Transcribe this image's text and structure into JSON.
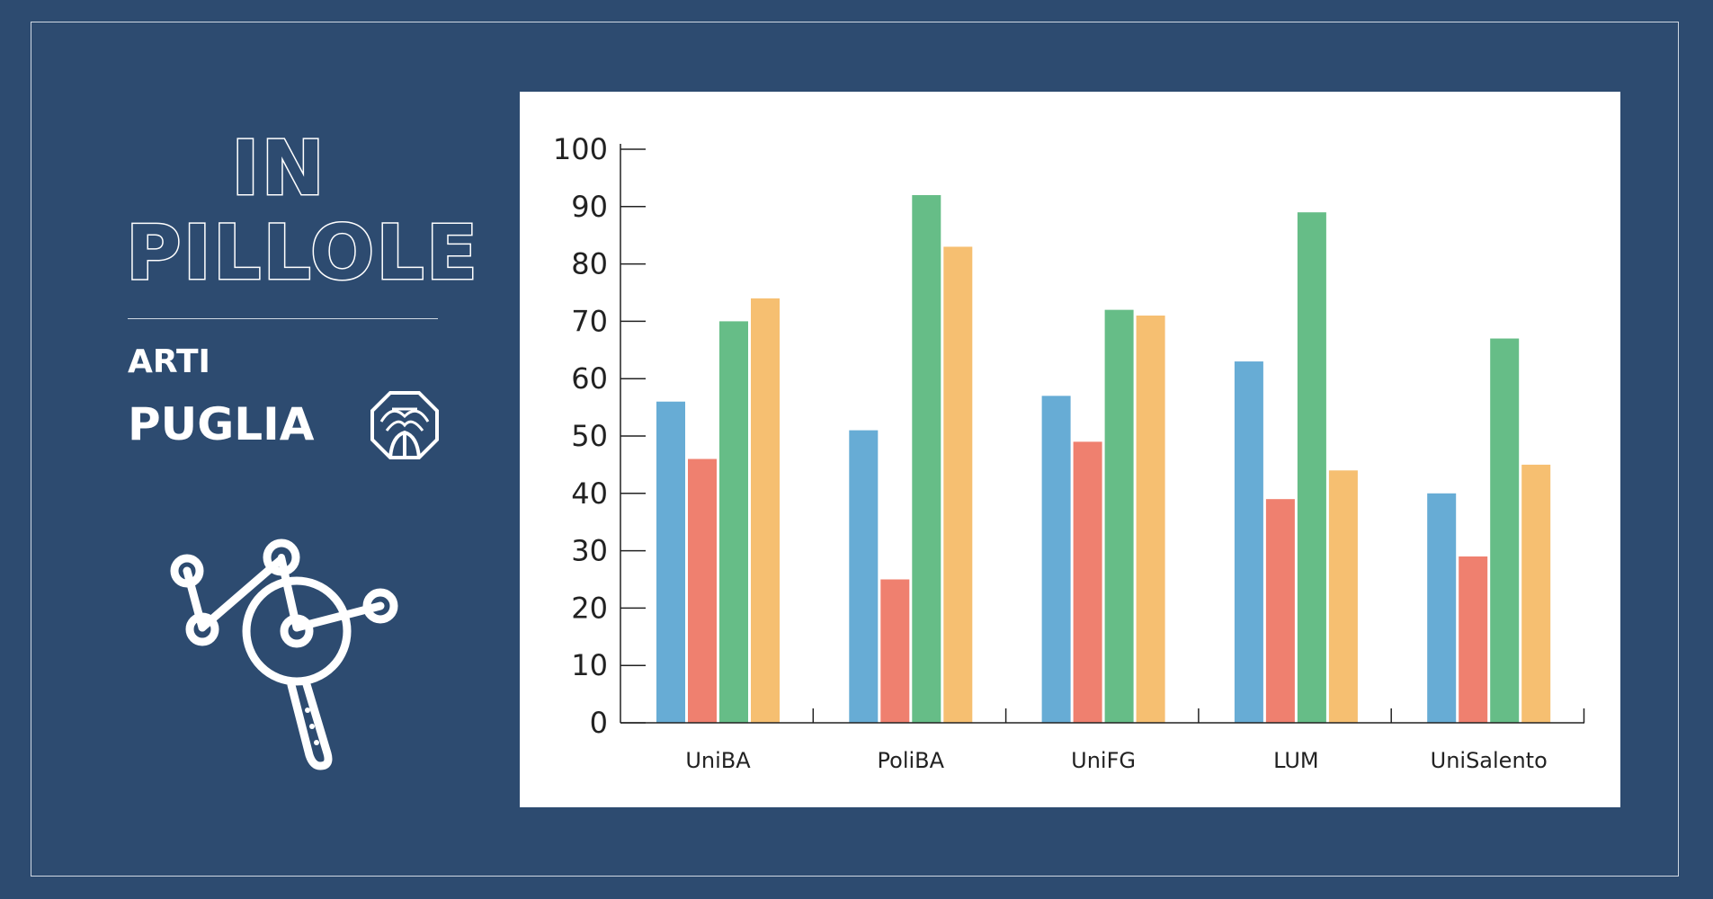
{
  "brand": {
    "title_line1": "IN",
    "title_line2": "PILLOLE",
    "subtitle_line1": "ARTI",
    "subtitle_line2": "PUGLIA"
  },
  "chart_data": {
    "type": "bar",
    "categories": [
      "UniBA",
      "PoliBA",
      "UniFG",
      "LUM",
      "UniSalento"
    ],
    "series": [
      {
        "color": "#67acd5",
        "values": [
          56,
          51,
          57,
          63,
          40
        ]
      },
      {
        "color": "#ef806f",
        "values": [
          46,
          25,
          49,
          39,
          29
        ]
      },
      {
        "color": "#66bd87",
        "values": [
          70,
          92,
          72,
          89,
          67
        ]
      },
      {
        "color": "#f6bf71",
        "values": [
          74,
          83,
          71,
          44,
          45
        ]
      }
    ],
    "yticks": [
      0,
      10,
      20,
      30,
      40,
      50,
      60,
      70,
      80,
      90,
      100
    ],
    "ylim": [
      0,
      100
    ],
    "grid": false,
    "legend": "none"
  }
}
